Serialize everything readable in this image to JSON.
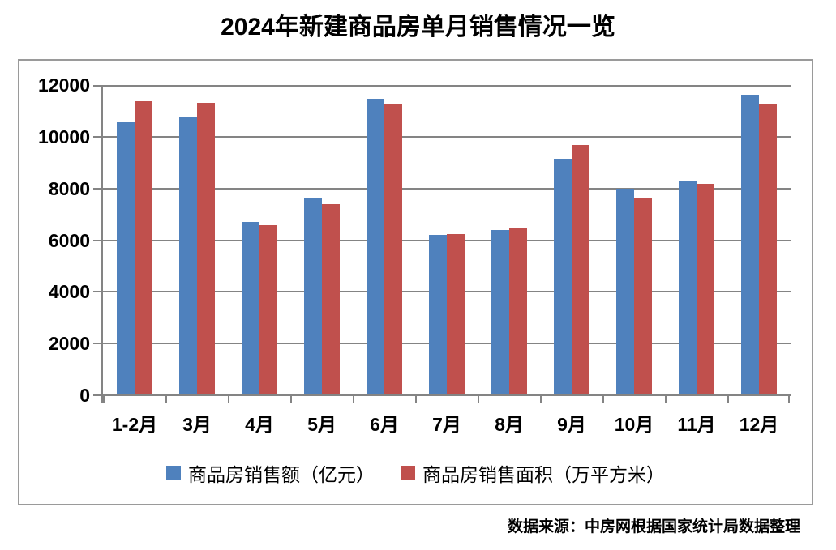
{
  "page": {
    "title": "2024年新建商品房单月销售情况一览",
    "source_note": "数据来源：中房网根据国家统计局数据整理"
  },
  "chart_data": {
    "type": "bar",
    "title": "2024年新建商品房单月销售情况一览",
    "categories": [
      "1-2月",
      "3月",
      "4月",
      "5月",
      "6月",
      "7月",
      "8月",
      "9月",
      "10月",
      "11月",
      "12月"
    ],
    "series": [
      {
        "name": "商品房销售额（亿元）",
        "color": "#4F81BD",
        "values": [
          10566,
          10789,
          6712,
          7598,
          11468,
          6197,
          6393,
          9157,
          7975,
          8270,
          11625
        ]
      },
      {
        "name": "商品房销售面积（万平方米）",
        "color": "#C0504D",
        "values": [
          11369,
          11299,
          6584,
          7390,
          11274,
          6233,
          6453,
          9682,
          7646,
          8188,
          11267
        ]
      }
    ],
    "xlabel": "",
    "ylabel": "",
    "ylim": [
      0,
      12000
    ],
    "y_ticks": [
      0,
      2000,
      4000,
      6000,
      8000,
      10000,
      12000
    ],
    "grid": true,
    "legend_position": "bottom",
    "colors": {
      "gridline": "#848484",
      "axis": "#848484",
      "frame_border": "#9a9a9a",
      "title": "#000000"
    }
  }
}
